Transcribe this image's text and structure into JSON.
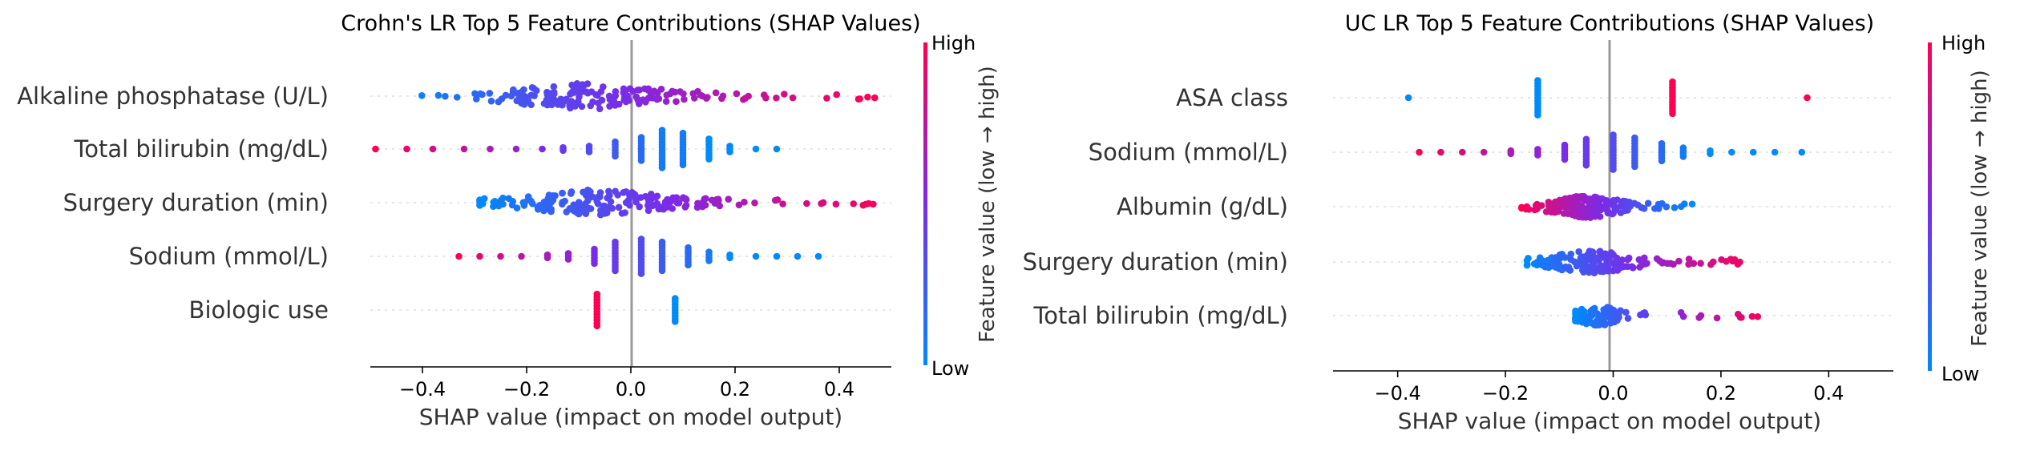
{
  "colors": {
    "low": "#008AFA",
    "mid": "#7B2BE8",
    "high": "#FF0052",
    "zero_line": "#999999"
  },
  "chart_data": [
    {
      "type": "scatter",
      "subtype": "shap-beeswarm",
      "title": "Crohn's LR Top 5 Feature Contributions (SHAP Values)",
      "xlabel": "SHAP value (impact on model output)",
      "xlim": [
        -0.5,
        0.5
      ],
      "xticks": [
        -0.4,
        -0.2,
        0.0,
        0.2,
        0.4
      ],
      "xtick_labels": [
        "−0.4",
        "−0.2",
        "0.0",
        "0.2",
        "0.4"
      ],
      "colorbar": {
        "label": "Feature value (low → high)",
        "high_label": "High",
        "low_label": "Low"
      },
      "features": [
        {
          "name": "Alkaline phosphatase (U/L)",
          "kind": "continuous",
          "min": -0.43,
          "max": 0.47,
          "center": -0.08,
          "spread": 0.12,
          "density": 170,
          "jitter": 0.55
        },
        {
          "name": "Total bilirubin (mg/dL)",
          "kind": "discrete",
          "points": [
            [
              -0.49,
              12,
              1,
              1
            ],
            [
              -0.43,
              11,
              1,
              1
            ],
            [
              -0.38,
              10,
              1,
              1
            ],
            [
              -0.32,
              9,
              1,
              1
            ],
            [
              -0.27,
              8,
              1,
              1
            ],
            [
              -0.22,
              7,
              1,
              1
            ],
            [
              -0.17,
              6,
              1,
              1
            ],
            [
              -0.13,
              5,
              1,
              2
            ],
            [
              -0.08,
              4,
              1,
              3
            ],
            [
              -0.03,
              3,
              1,
              6
            ],
            [
              0.02,
              2,
              1,
              9
            ],
            [
              0.06,
              1,
              1,
              14
            ],
            [
              0.1,
              1,
              1,
              12
            ],
            [
              0.15,
              0,
              1,
              8
            ],
            [
              0.19,
              0,
              1,
              3
            ],
            [
              0.24,
              0,
              1,
              1
            ],
            [
              0.28,
              0,
              1,
              1
            ]
          ]
        },
        {
          "name": "Surgery duration (min)",
          "kind": "continuous",
          "min": -0.29,
          "max": 0.49,
          "center": -0.06,
          "spread": 0.11,
          "density": 190,
          "jitter": 0.55
        },
        {
          "name": "Sodium (mmol/L)",
          "kind": "discrete",
          "points": [
            [
              -0.33,
              12,
              1,
              1
            ],
            [
              -0.29,
              11,
              1,
              1
            ],
            [
              -0.25,
              10,
              1,
              1
            ],
            [
              -0.21,
              9,
              1,
              1
            ],
            [
              -0.16,
              8,
              1,
              2
            ],
            [
              -0.12,
              7,
              1,
              3
            ],
            [
              -0.07,
              6,
              1,
              6
            ],
            [
              -0.03,
              5,
              1,
              11
            ],
            [
              0.02,
              4,
              1,
              13
            ],
            [
              0.06,
              3,
              1,
              11
            ],
            [
              0.11,
              2,
              1,
              7
            ],
            [
              0.15,
              1,
              1,
              4
            ],
            [
              0.19,
              0,
              1,
              2
            ],
            [
              0.24,
              0,
              1,
              1
            ],
            [
              0.28,
              0,
              1,
              1
            ],
            [
              0.32,
              0,
              1,
              1
            ],
            [
              0.36,
              0,
              1,
              1
            ]
          ]
        },
        {
          "name": "Biologic use",
          "kind": "discrete",
          "points": [
            [
              -0.065,
              12,
              1,
              12
            ],
            [
              0.085,
              0,
              1,
              9
            ]
          ]
        }
      ]
    },
    {
      "type": "scatter",
      "subtype": "shap-beeswarm",
      "title": "UC LR Top 5 Feature Contributions (SHAP Values)",
      "xlabel": "SHAP value (impact on model output)",
      "xlim": [
        -0.52,
        0.52
      ],
      "xticks": [
        -0.4,
        -0.2,
        0.0,
        0.2,
        0.4
      ],
      "xtick_labels": [
        "−0.4",
        "−0.2",
        "0.0",
        "0.2",
        "0.4"
      ],
      "colorbar": {
        "label": "Feature value (low → high)",
        "high_label": "High",
        "low_label": "Low"
      },
      "features": [
        {
          "name": "ASA class",
          "kind": "discrete",
          "points": [
            [
              -0.38,
              0,
              1,
              1
            ],
            [
              -0.14,
              0,
              1,
              13
            ],
            [
              0.11,
              12,
              1,
              12
            ],
            [
              0.36,
              12,
              1,
              1
            ]
          ]
        },
        {
          "name": "Sodium (mmol/L)",
          "kind": "discrete",
          "points": [
            [
              -0.36,
              12,
              1,
              1
            ],
            [
              -0.32,
              11,
              1,
              1
            ],
            [
              -0.28,
              10,
              1,
              1
            ],
            [
              -0.24,
              9,
              1,
              1
            ],
            [
              -0.19,
              8,
              1,
              2
            ],
            [
              -0.14,
              7,
              1,
              3
            ],
            [
              -0.09,
              6,
              1,
              6
            ],
            [
              -0.05,
              5,
              1,
              10
            ],
            [
              0.0,
              4,
              1,
              13
            ],
            [
              0.04,
              3,
              1,
              11
            ],
            [
              0.09,
              2,
              1,
              7
            ],
            [
              0.13,
              1,
              1,
              4
            ],
            [
              0.18,
              0,
              1,
              2
            ],
            [
              0.22,
              0,
              1,
              1
            ],
            [
              0.26,
              0,
              1,
              1
            ],
            [
              0.3,
              0,
              1,
              1
            ],
            [
              0.35,
              0,
              1,
              1
            ]
          ]
        },
        {
          "name": "Albumin (g/dL)",
          "kind": "continuous",
          "min": -0.17,
          "max": 0.15,
          "center": -0.05,
          "spread": 0.05,
          "density": 170,
          "jitter": 0.45,
          "invert": true
        },
        {
          "name": "Surgery duration (min)",
          "kind": "continuous",
          "min": -0.16,
          "max": 0.26,
          "center": -0.04,
          "spread": 0.06,
          "density": 170,
          "jitter": 0.45
        },
        {
          "name": "Total bilirubin (mg/dL)",
          "kind": "continuous",
          "min": -0.07,
          "max": 0.29,
          "center": -0.03,
          "spread": 0.03,
          "density": 95,
          "jitter": 0.4
        }
      ]
    }
  ]
}
